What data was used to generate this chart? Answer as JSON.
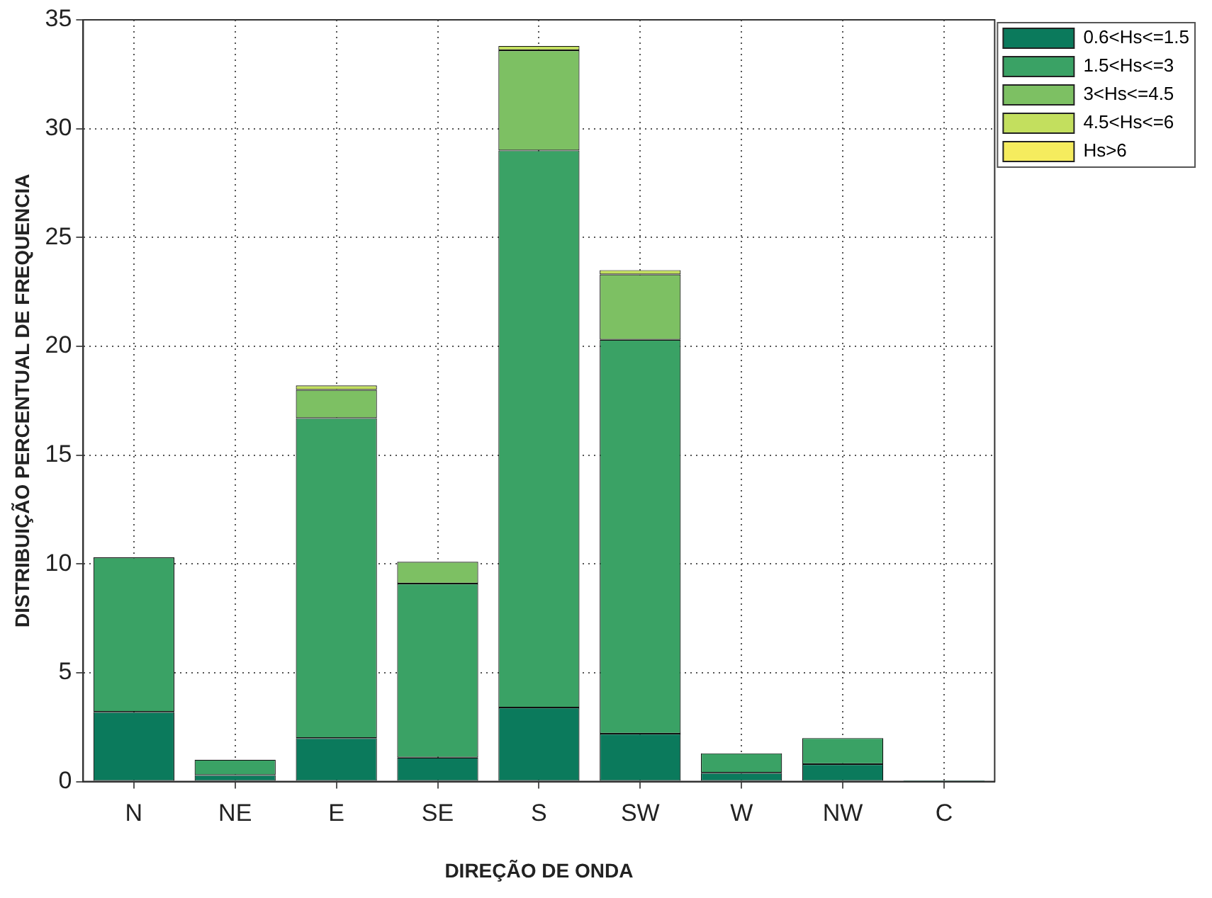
{
  "chart_data": {
    "type": "bar",
    "stacked": true,
    "xlabel": "DIREÇÃO DE ONDA",
    "ylabel": "DISTRIBUIÇÃO PERCENTUAL DE FREQUENCIA",
    "categories": [
      "N",
      "NE",
      "E",
      "SE",
      "S",
      "SW",
      "W",
      "NW",
      "C"
    ],
    "series": [
      {
        "name": "0.6<Hs<=1.5",
        "color": "#0b7a5c",
        "values": [
          3.2,
          0.3,
          2.0,
          1.1,
          3.4,
          2.2,
          0.4,
          0.8,
          0.05
        ]
      },
      {
        "name": "1.5<Hs<=3",
        "color": "#3aa265",
        "values": [
          7.1,
          0.7,
          14.7,
          8.0,
          25.6,
          18.1,
          0.9,
          1.2,
          0
        ]
      },
      {
        "name": "3<Hs<=4.5",
        "color": "#7dc063",
        "values": [
          0,
          0,
          1.3,
          1.0,
          4.6,
          3.0,
          0,
          0,
          0
        ]
      },
      {
        "name": "4.5<Hs<=6",
        "color": "#c3df5e",
        "values": [
          0,
          0,
          0.2,
          0,
          0.2,
          0.2,
          0,
          0,
          0
        ]
      },
      {
        "name": "Hs>6",
        "color": "#f5ec5e",
        "values": [
          0,
          0,
          0,
          0,
          0,
          0,
          0,
          0,
          0
        ]
      }
    ],
    "ylim": [
      0,
      35
    ],
    "yticks": [
      0,
      5,
      10,
      15,
      20,
      25,
      30,
      35
    ],
    "grid": true,
    "legend": "top right"
  }
}
